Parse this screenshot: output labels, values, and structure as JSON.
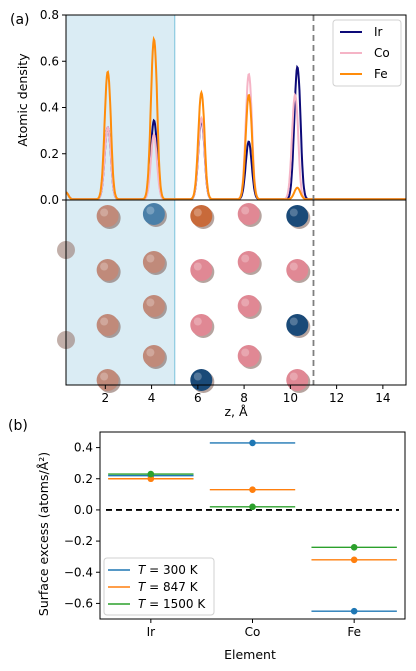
{
  "chart_data": [
    {
      "type": "line",
      "panel_label": "(a)",
      "xlabel": "z, Å",
      "ylabel": "Atomic density",
      "xlim": [
        0.3,
        15.0
      ],
      "ylim": [
        0.0,
        0.8
      ],
      "xticks": [
        "2",
        "4",
        "6",
        "8",
        "10",
        "12",
        "14"
      ],
      "yticks": [
        "0.0",
        "0.2",
        "0.4",
        "0.6",
        "0.8"
      ],
      "shaded_region_x": [
        0.3,
        5.0
      ],
      "dashed_vline_x": 11.0,
      "legend_position": "top-right",
      "series": [
        {
          "name": "Ir",
          "color": "#0d0a78",
          "peaks": [
            {
              "x": 2.1,
              "y": 0.31
            },
            {
              "x": 4.1,
              "y": 0.34
            },
            {
              "x": 6.15,
              "y": 0.34
            },
            {
              "x": 8.2,
              "y": 0.25
            },
            {
              "x": 10.3,
              "y": 0.57
            }
          ]
        },
        {
          "name": "Co",
          "color": "#f5b4c6",
          "peaks": [
            {
              "x": 2.1,
              "y": 0.31
            },
            {
              "x": 4.1,
              "y": 0.28
            },
            {
              "x": 6.15,
              "y": 0.35
            },
            {
              "x": 8.2,
              "y": 0.54
            },
            {
              "x": 10.2,
              "y": 0.45
            }
          ]
        },
        {
          "name": "Fe",
          "color": "#ff8c0a",
          "peaks": [
            {
              "x": 2.1,
              "y": 0.55
            },
            {
              "x": 4.1,
              "y": 0.69
            },
            {
              "x": 6.15,
              "y": 0.46
            },
            {
              "x": 8.2,
              "y": 0.45
            },
            {
              "x": 10.3,
              "y": 0.05
            }
          ]
        }
      ],
      "atom_layers_x": [
        2.1,
        4.1,
        6.15,
        8.2,
        10.3
      ],
      "atom_colors": {
        "Ir": "#1a4a78",
        "Co": "#e08894",
        "Fe": "#c86a3a",
        "mixed": "#c08a7a"
      }
    },
    {
      "type": "scatter",
      "panel_label": "(b)",
      "xlabel": "Element",
      "ylabel": "Surface excess (atoms/Å²)",
      "categories": [
        "Ir",
        "Co",
        "Fe"
      ],
      "ylim": [
        -0.7,
        0.5
      ],
      "yticks": [
        "−0.6",
        "−0.4",
        "−0.2",
        "0.0",
        "0.2",
        "0.4"
      ],
      "zero_line": "dashed",
      "legend_position": "bottom-left",
      "series": [
        {
          "name": "T = 300 K",
          "label_T": "T",
          "label_rest": " = 300 K",
          "color": "#1f77b4",
          "values": [
            0.22,
            0.43,
            -0.65
          ]
        },
        {
          "name": "T = 847 K",
          "label_T": "T",
          "label_rest": " = 847 K",
          "color": "#ff7f0e",
          "values": [
            0.2,
            0.13,
            -0.32
          ]
        },
        {
          "name": "T = 1500 K",
          "label_T": "T",
          "label_rest": " = 1500 K",
          "color": "#2ca02c",
          "values": [
            0.23,
            0.02,
            -0.24
          ]
        }
      ]
    }
  ]
}
